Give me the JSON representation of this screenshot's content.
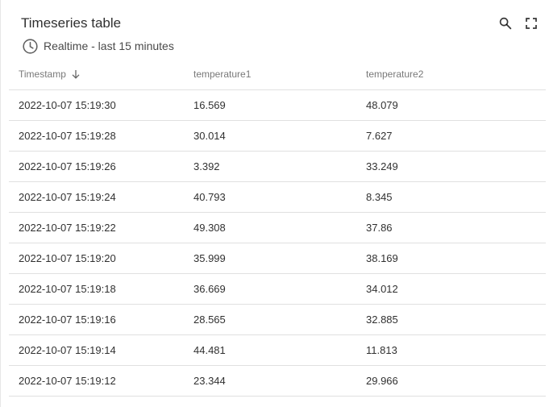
{
  "widget": {
    "title": "Timeseries table",
    "timewindow_label": "Realtime - last 15 minutes",
    "icons": {
      "timewindow": "clock-icon",
      "search": "search-icon",
      "fullscreen": "fullscreen-icon",
      "sort": "arrow-down-icon"
    }
  },
  "table": {
    "columns": [
      "Timestamp",
      "temperature1",
      "temperature2"
    ],
    "sort": {
      "column": "Timestamp",
      "direction": "desc"
    },
    "rows": [
      [
        "2022-10-07 15:19:30",
        "16.569",
        "48.079"
      ],
      [
        "2022-10-07 15:19:28",
        "30.014",
        "7.627"
      ],
      [
        "2022-10-07 15:19:26",
        "3.392",
        "33.249"
      ],
      [
        "2022-10-07 15:19:24",
        "40.793",
        "8.345"
      ],
      [
        "2022-10-07 15:19:22",
        "49.308",
        "37.86"
      ],
      [
        "2022-10-07 15:19:20",
        "35.999",
        "38.169"
      ],
      [
        "2022-10-07 15:19:18",
        "36.669",
        "34.012"
      ],
      [
        "2022-10-07 15:19:16",
        "28.565",
        "32.885"
      ],
      [
        "2022-10-07 15:19:14",
        "44.481",
        "11.813"
      ],
      [
        "2022-10-07 15:19:12",
        "23.344",
        "29.966"
      ]
    ]
  }
}
